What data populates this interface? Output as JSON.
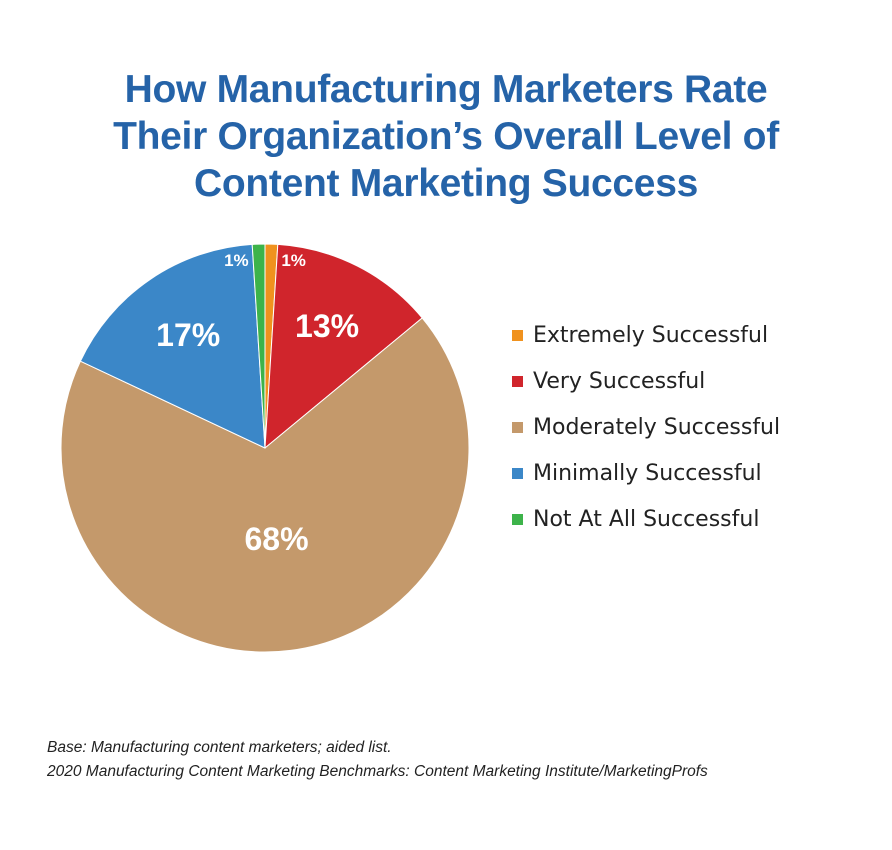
{
  "chart_data": {
    "type": "pie",
    "title": "How Manufacturing Marketers Rate Their Organization’s Overall Level of Content Marketing Success",
    "title_lines": [
      "How Manufacturing Marketers Rate",
      "Their Organization’s Overall Level of",
      "Content Marketing Success"
    ],
    "slices": [
      {
        "name": "Extremely Successful",
        "value": 1,
        "label": "1%",
        "color": "#f0921e"
      },
      {
        "name": "Very Successful",
        "value": 13,
        "label": "13%",
        "color": "#d0252c"
      },
      {
        "name": "Moderately Successful",
        "value": 68,
        "label": "68%",
        "color": "#c4996b"
      },
      {
        "name": "Minimally Successful",
        "value": 17,
        "label": "17%",
        "color": "#3b87c8"
      },
      {
        "name": "Not At All Successful",
        "value": 1,
        "label": "1%",
        "color": "#3db34a"
      }
    ],
    "legend_placement": "right"
  },
  "footnote": {
    "line1": "Base: Manufacturing content marketers; aided list.",
    "line2": "2020 Manufacturing Content Marketing Benchmarks: Content Marketing Institute/MarketingProfs"
  }
}
